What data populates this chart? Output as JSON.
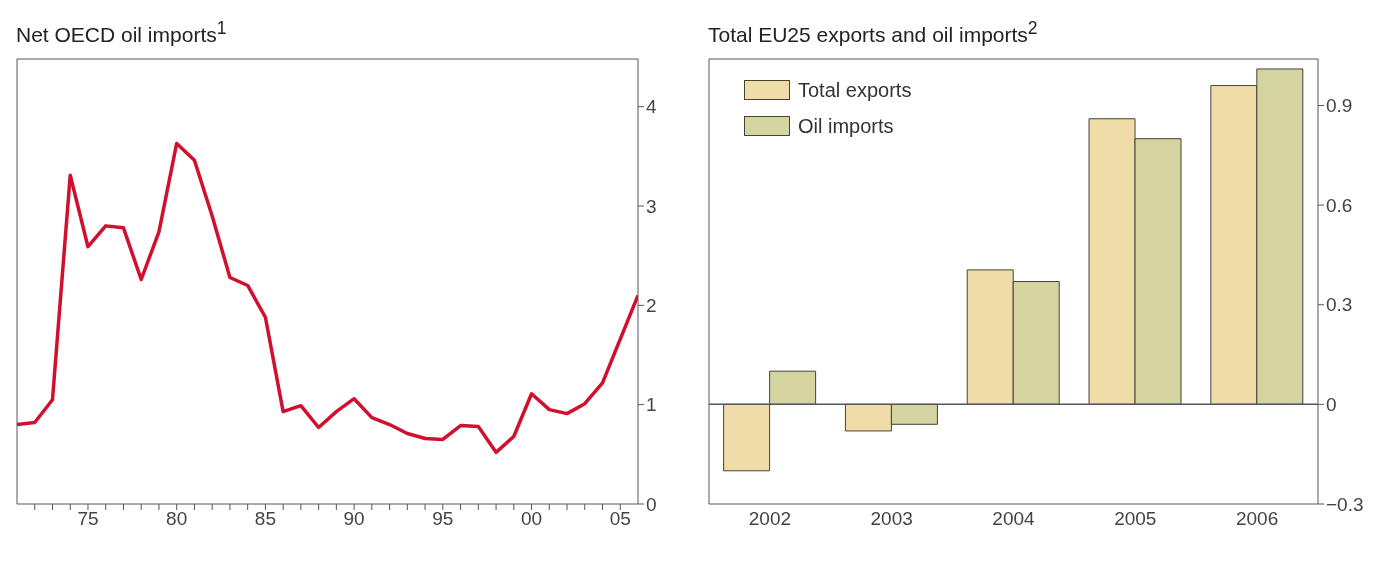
{
  "chart_data": [
    {
      "type": "line",
      "title": "Net OECD oil imports$^{1}$",
      "x": [
        1971,
        1972,
        1973,
        1974,
        1975,
        1976,
        1977,
        1978,
        1979,
        1980,
        1981,
        1982,
        1983,
        1984,
        1985,
        1986,
        1987,
        1988,
        1989,
        1990,
        1991,
        1992,
        1993,
        1994,
        1995,
        1996,
        1997,
        1998,
        1999,
        2000,
        2001,
        2002,
        2003,
        2004,
        2005,
        2006
      ],
      "series": [
        {
          "color": "#d0102e",
          "values": [
            0.8,
            0.82,
            1.05,
            3.31,
            2.59,
            2.8,
            2.78,
            2.26,
            2.74,
            3.63,
            3.46,
            2.9,
            2.28,
            2.2,
            1.88,
            0.93,
            0.99,
            0.77,
            0.93,
            1.06,
            0.87,
            0.8,
            0.71,
            0.66,
            0.65,
            0.79,
            0.78,
            0.52,
            0.68,
            1.11,
            0.95,
            0.91,
            1.01,
            1.22,
            1.66,
            2.1
          ]
        }
      ],
      "xlim": [
        1971,
        2006
      ],
      "xticks": [
        {
          "value": 1972,
          "label": null
        },
        {
          "value": 1973,
          "label": null
        },
        {
          "value": 1974,
          "label": null
        },
        {
          "value": 1975,
          "label": "75"
        },
        {
          "value": 1976,
          "label": null
        },
        {
          "value": 1977,
          "label": null
        },
        {
          "value": 1978,
          "label": null
        },
        {
          "value": 1979,
          "label": null
        },
        {
          "value": 1980,
          "label": "80"
        },
        {
          "value": 1981,
          "label": null
        },
        {
          "value": 1982,
          "label": null
        },
        {
          "value": 1983,
          "label": null
        },
        {
          "value": 1984,
          "label": null
        },
        {
          "value": 1985,
          "label": "85"
        },
        {
          "value": 1986,
          "label": null
        },
        {
          "value": 1987,
          "label": null
        },
        {
          "value": 1988,
          "label": null
        },
        {
          "value": 1989,
          "label": null
        },
        {
          "value": 1990,
          "label": "90"
        },
        {
          "value": 1991,
          "label": null
        },
        {
          "value": 1992,
          "label": null
        },
        {
          "value": 1993,
          "label": null
        },
        {
          "value": 1994,
          "label": null
        },
        {
          "value": 1995,
          "label": "95"
        },
        {
          "value": 1996,
          "label": null
        },
        {
          "value": 1997,
          "label": null
        },
        {
          "value": 1998,
          "label": null
        },
        {
          "value": 1999,
          "label": null
        },
        {
          "value": 2000,
          "label": "00"
        },
        {
          "value": 2001,
          "label": null
        },
        {
          "value": 2002,
          "label": null
        },
        {
          "value": 2003,
          "label": null
        },
        {
          "value": 2004,
          "label": null
        },
        {
          "value": 2005,
          "label": "05"
        }
      ],
      "ylim": [
        0,
        4.48
      ],
      "yticks": [
        0,
        1,
        2,
        3,
        4
      ],
      "grid": false,
      "legend": false,
      "marker": "none",
      "line_style": "solid"
    },
    {
      "type": "bar",
      "title": "Total EU25 exports and oil imports$^{2}$",
      "categories": [
        "2002",
        "2003",
        "2004",
        "2005",
        "2006"
      ],
      "series": [
        {
          "name": "Total exports",
          "color": "#f0dca8",
          "values": [
            -0.2,
            -0.08,
            0.405,
            0.86,
            0.96
          ]
        },
        {
          "name": "Oil imports",
          "color": "#d4d4a0",
          "values": [
            0.1,
            -0.06,
            0.37,
            0.8,
            1.01
          ]
        }
      ],
      "ylim": [
        -0.3,
        1.04
      ],
      "yticks": [
        {
          "value": -0.3,
          "label": "−0.3"
        },
        0,
        0.3,
        0.6,
        0.9
      ],
      "grid": false,
      "legend": "top left",
      "ref_lines": [
        {
          "axis": "y",
          "value": 0,
          "color": "#555566"
        }
      ]
    }
  ]
}
